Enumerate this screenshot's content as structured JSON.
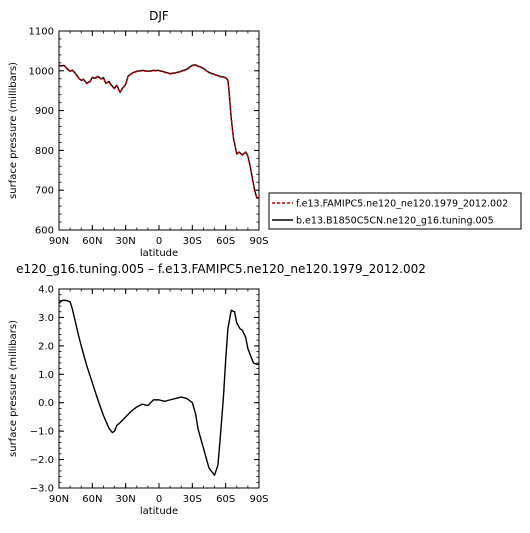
{
  "chart_data": [
    {
      "type": "line",
      "title": "DJF",
      "xlabel": "latitude",
      "ylabel": "surface pressure (millibars)",
      "xlim": [
        -90,
        90
      ],
      "ylim": [
        600,
        1100
      ],
      "x_ticks": [
        -90,
        -60,
        -30,
        0,
        30,
        60,
        90
      ],
      "x_tick_labels": [
        "90N",
        "60N",
        "30N",
        "0",
        "30S",
        "60S",
        "90S"
      ],
      "y_ticks": [
        600,
        700,
        800,
        900,
        1000,
        1100
      ],
      "y_tick_labels": [
        "600",
        "700",
        "800",
        "900",
        "1000",
        "1100"
      ],
      "legend_position": "right",
      "series": [
        {
          "name": "f.e13.FAMIPC5.ne120_ne120.1979_2012.002",
          "color": "#cc0000",
          "dash": "dashed",
          "x": [
            -90,
            -85,
            -83,
            -80,
            -78,
            -75,
            -72,
            -70,
            -68,
            -65,
            -62,
            -60,
            -58,
            -55,
            -52,
            -50,
            -48,
            -45,
            -42,
            -40,
            -38,
            -35,
            -33,
            -30,
            -28,
            -25,
            -22,
            -20,
            -15,
            -10,
            -5,
            0,
            5,
            10,
            15,
            20,
            25,
            30,
            33,
            35,
            38,
            40,
            45,
            50,
            55,
            60,
            62,
            63,
            65,
            67,
            70,
            72,
            75,
            78,
            80,
            82,
            84,
            86,
            88,
            90
          ],
          "y": [
            1012,
            1012,
            1005,
            998,
            1001,
            992,
            980,
            975,
            978,
            968,
            972,
            983,
            980,
            985,
            979,
            982,
            968,
            972,
            960,
            955,
            963,
            945,
            955,
            965,
            985,
            992,
            996,
            998,
            1000,
            998,
            1000,
            1000,
            996,
            992,
            994,
            998,
            1003,
            1013,
            1014,
            1011,
            1008,
            1005,
            995,
            990,
            985,
            982,
            975,
            950,
            880,
            830,
            790,
            795,
            788,
            795,
            785,
            760,
            730,
            700,
            680,
            680
          ]
        },
        {
          "name": "b.e13.B1850C5CN.ne120_g16.tuning.005",
          "color": "#000000",
          "dash": "solid",
          "x": [
            -90,
            -85,
            -83,
            -80,
            -78,
            -75,
            -72,
            -70,
            -68,
            -65,
            -62,
            -60,
            -58,
            -55,
            -52,
            -50,
            -48,
            -45,
            -42,
            -40,
            -38,
            -35,
            -33,
            -30,
            -28,
            -25,
            -22,
            -20,
            -15,
            -10,
            -5,
            0,
            5,
            10,
            15,
            20,
            25,
            30,
            33,
            35,
            38,
            40,
            45,
            50,
            55,
            60,
            62,
            63,
            65,
            67,
            70,
            72,
            75,
            78,
            80,
            82,
            84,
            86,
            88,
            90
          ],
          "y": [
            1013,
            1013,
            1006,
            999,
            1002,
            993,
            981,
            976,
            979,
            969,
            973,
            984,
            981,
            986,
            980,
            983,
            969,
            973,
            961,
            956,
            964,
            946,
            956,
            966,
            986,
            993,
            997,
            999,
            1001,
            999,
            1001,
            1001,
            997,
            993,
            995,
            999,
            1004,
            1014,
            1015,
            1012,
            1009,
            1006,
            996,
            991,
            986,
            983,
            976,
            951,
            881,
            831,
            791,
            796,
            789,
            796,
            786,
            761,
            731,
            701,
            681,
            681
          ]
        }
      ]
    },
    {
      "type": "line",
      "title": "e120_g16.tuning.005 – f.e13.FAMIPC5.ne120_ne120.1979_2012.002",
      "xlabel": "latitude",
      "ylabel": "surface pressure (millibars)",
      "xlim": [
        -90,
        90
      ],
      "ylim": [
        -3.0,
        4.0
      ],
      "x_ticks": [
        -90,
        -60,
        -30,
        0,
        30,
        60,
        90
      ],
      "x_tick_labels": [
        "90N",
        "60N",
        "30N",
        "0",
        "30S",
        "60S",
        "90S"
      ],
      "y_ticks": [
        -3.0,
        -2.0,
        -1.0,
        0.0,
        1.0,
        2.0,
        3.0,
        4.0
      ],
      "y_tick_labels": [
        "−3.0",
        "−2.0",
        "−1.0",
        "0.0",
        "1.0",
        "2.0",
        "3.0",
        "4.0"
      ],
      "series": [
        {
          "color": "#000000",
          "x": [
            -90,
            -87,
            -84,
            -80,
            -78,
            -75,
            -72,
            -70,
            -65,
            -60,
            -55,
            -50,
            -45,
            -42,
            -40,
            -38,
            -35,
            -30,
            -25,
            -20,
            -15,
            -10,
            -5,
            0,
            5,
            10,
            15,
            20,
            25,
            30,
            33,
            35,
            40,
            45,
            50,
            53,
            55,
            58,
            60,
            62,
            65,
            68,
            70,
            73,
            75,
            78,
            80,
            83,
            85,
            88,
            90
          ],
          "y": [
            3.5,
            3.6,
            3.6,
            3.55,
            3.3,
            2.8,
            2.3,
            2.0,
            1.3,
            0.7,
            0.1,
            -0.45,
            -0.9,
            -1.05,
            -1.0,
            -0.8,
            -0.7,
            -0.5,
            -0.3,
            -0.15,
            -0.05,
            -0.1,
            0.1,
            0.1,
            0.05,
            0.1,
            0.15,
            0.2,
            0.15,
            0.0,
            -0.4,
            -0.9,
            -1.6,
            -2.3,
            -2.55,
            -2.2,
            -1.3,
            0.2,
            1.5,
            2.6,
            3.25,
            3.2,
            2.8,
            2.6,
            2.55,
            2.3,
            1.9,
            1.6,
            1.4,
            1.35,
            1.35
          ]
        }
      ]
    }
  ]
}
